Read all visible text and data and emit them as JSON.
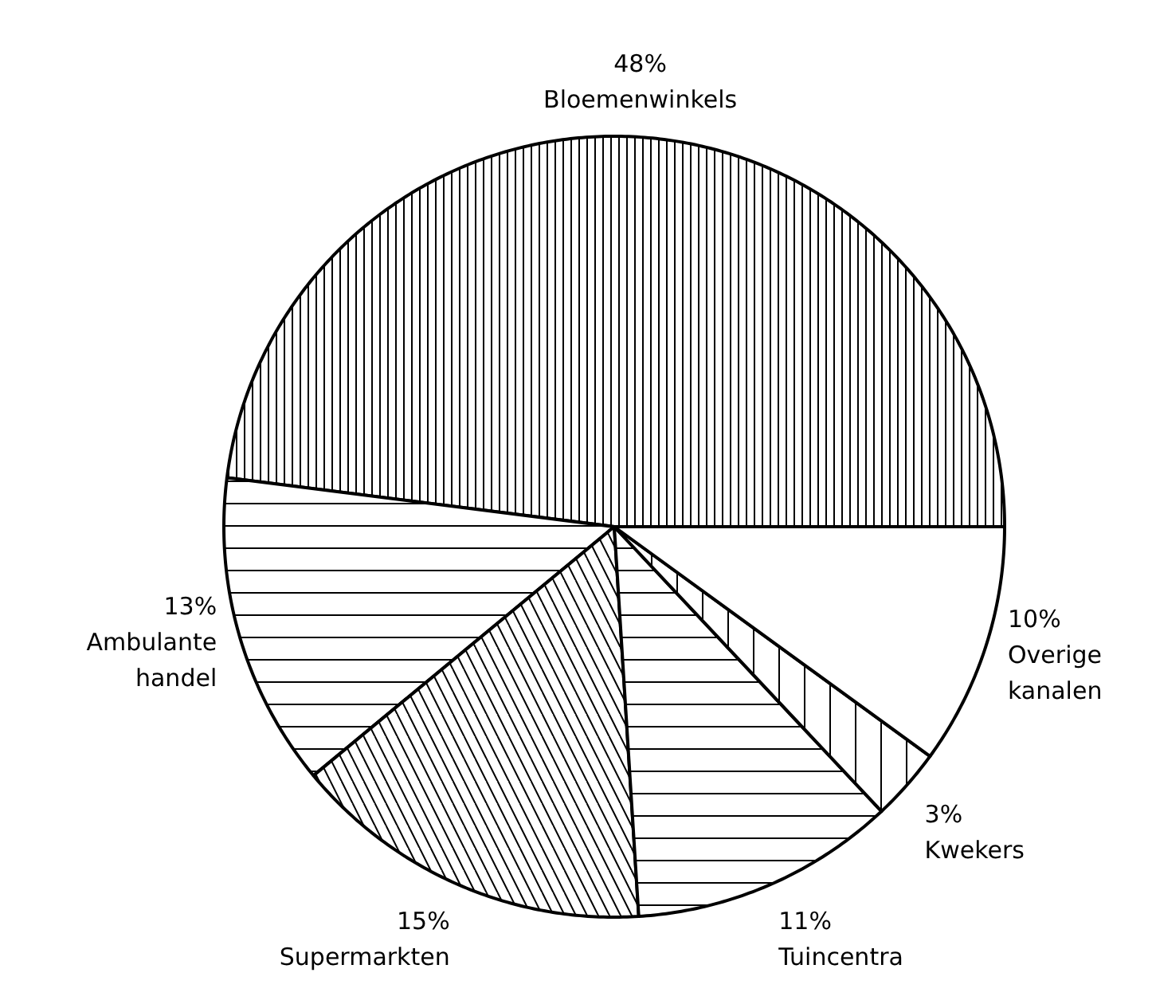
{
  "chart_data": {
    "type": "pie",
    "categories": [
      "Bloemenwinkels",
      "Ambulante handel",
      "Supermarkten",
      "Tuincentra",
      "Kwekers",
      "Overige kanalen"
    ],
    "values": [
      48,
      13,
      15,
      11,
      3,
      10
    ],
    "value_labels": [
      "48%",
      "13%",
      "15%",
      "11%",
      "3%",
      "10%"
    ],
    "colors": [
      "#ffffff",
      "#ffffff",
      "#ffffff",
      "#ffffff",
      "#ffffff",
      "#ffffff"
    ]
  }
}
